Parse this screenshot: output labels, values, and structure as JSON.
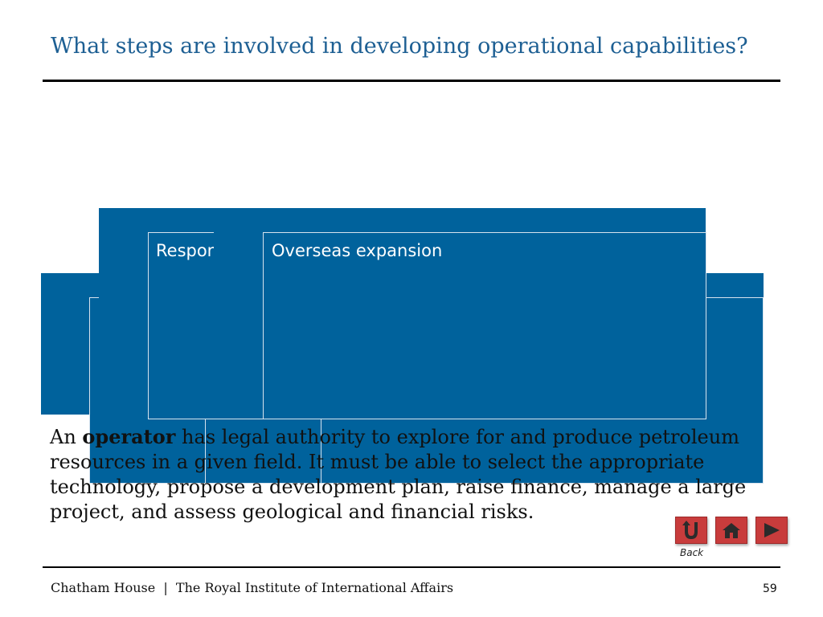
{
  "header": {
    "title": "What steps are involved in developing operational capabilities?"
  },
  "boxes": {
    "responsibilities_label": "Respon",
    "overseas_label": "Overseas expansion"
  },
  "body": {
    "prefix": "An ",
    "bold_term": "operator",
    "rest": " has legal authority to explore for and produce petroleum resources in a given field. It must be able to select the appropriate technology, propose a development plan, raise finance, manage a large project, and assess geological and financial risks."
  },
  "nav": {
    "back_label": "Back",
    "back_icon": "u-turn-icon",
    "home_icon": "home-icon",
    "next_icon": "play-icon",
    "button_color": "#c83c3c"
  },
  "footer": {
    "institution": "Chatham House  |  The Royal Institute of International Affairs",
    "page_number": "59"
  },
  "colors": {
    "accent": "#1d5f93",
    "box_fill": "#00629c"
  }
}
